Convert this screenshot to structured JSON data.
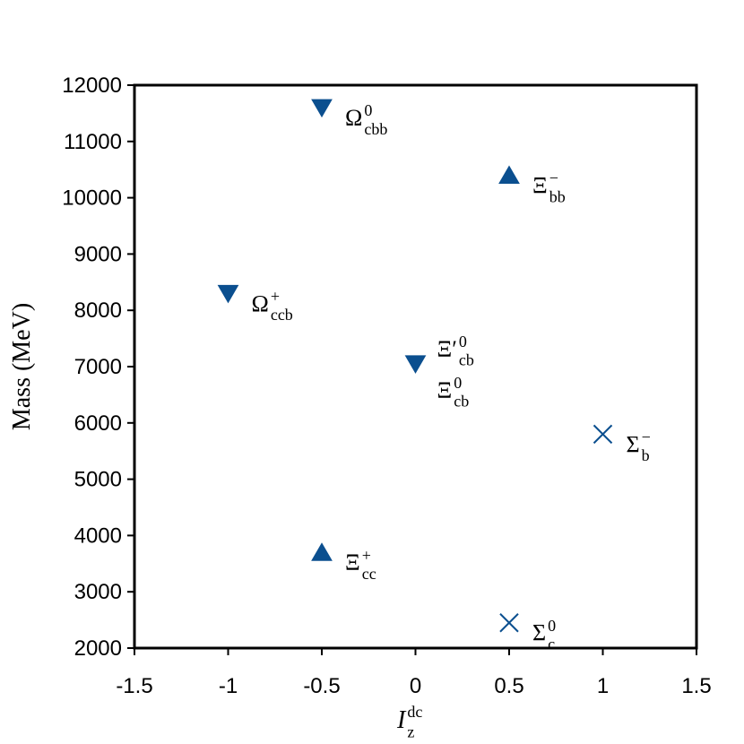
{
  "chart_data": {
    "type": "scatter",
    "y_label": "Mass (MeV)",
    "x_label": {
      "base": "I",
      "sup": "dc",
      "sub": "z"
    },
    "xlim": [
      -1.5,
      1.5
    ],
    "xticks": [
      -1.5,
      -1,
      -0.5,
      0,
      0.5,
      1,
      1.5
    ],
    "ylim": [
      2000,
      12000
    ],
    "yticks": [
      2000,
      3000,
      4000,
      5000,
      6000,
      7000,
      8000,
      9000,
      10000,
      11000,
      12000
    ],
    "series": [
      {
        "marker": "triangle-down",
        "color": "#0b4f8f",
        "x": [
          -0.5,
          -1,
          0
        ],
        "values": [
          11600,
          8300,
          7050
        ],
        "labels": [
          [
            {
              "base": "Ω",
              "sub": "cbb",
              "sup": "0"
            }
          ],
          [
            {
              "base": "Ω",
              "sub": "ccb",
              "sup": "+"
            }
          ],
          [
            {
              "base": "Ξ′",
              "sub": "cb",
              "sup": "0"
            },
            {
              "base": "Ξ",
              "sub": "cb",
              "sup": "0"
            }
          ]
        ]
      },
      {
        "marker": "triangle-up",
        "color": "#0b4f8f",
        "x": [
          0.5,
          -0.5
        ],
        "values": [
          10400,
          3700
        ],
        "labels": [
          [
            {
              "base": "Ξ",
              "sub": "bb",
              "sup": "−"
            }
          ],
          [
            {
              "base": "Ξ",
              "sub": "cc",
              "sup": "+"
            }
          ]
        ]
      },
      {
        "marker": "cross",
        "color": "#0b4f8f",
        "x": [
          1,
          0.5
        ],
        "values": [
          5800,
          2450
        ],
        "labels": [
          [
            {
              "base": "Σ",
              "sub": "b",
              "sup": "−"
            }
          ],
          [
            {
              "base": "Σ",
              "sub": "c",
              "sup": "0"
            }
          ]
        ]
      }
    ]
  }
}
